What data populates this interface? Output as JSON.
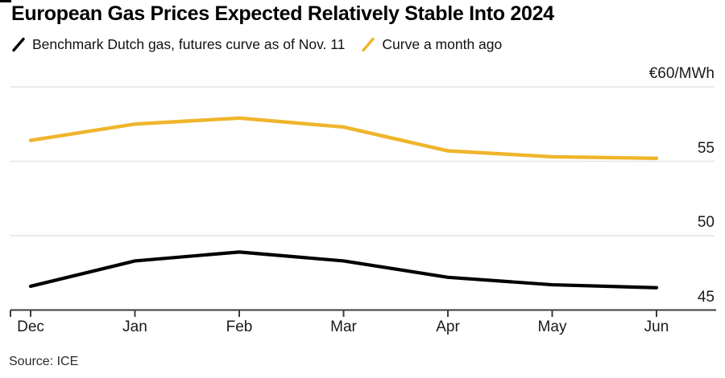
{
  "header": {
    "title": "European Gas Prices Expected Relatively Stable Into 2024",
    "legend": [
      {
        "label": "Benchmark Dutch gas, futures curve as of Nov. 11",
        "color": "#000000"
      },
      {
        "label": "Curve a month ago",
        "color": "#EFB52B"
      }
    ]
  },
  "chart_data": {
    "type": "line",
    "categories": [
      "Dec",
      "Jan",
      "Feb",
      "Mar",
      "Apr",
      "May",
      "Jun"
    ],
    "series": [
      {
        "name": "Benchmark Dutch gas, futures curve as of Nov. 11",
        "color": "#000000",
        "values": [
          46.6,
          48.3,
          48.9,
          48.3,
          47.2,
          46.7,
          46.5
        ]
      },
      {
        "name": "Curve a month ago",
        "color": "#EFB52B",
        "values": [
          56.4,
          57.5,
          57.9,
          57.3,
          55.7,
          55.3,
          55.2
        ]
      }
    ],
    "unit_label": "€60/MWh",
    "unit_label_value": 60,
    "y_grid_values": [
      60,
      55,
      50
    ],
    "y_tick_labels": [
      {
        "text": "55",
        "value": 55
      },
      {
        "text": "50",
        "value": 50
      },
      {
        "text": "45",
        "value": 45
      }
    ],
    "ylim": [
      45,
      60
    ],
    "grid": "horizontal",
    "legend_position": "top",
    "colors": {
      "gridline": "#e4e4e4",
      "axis": "#3c3c3c",
      "label": "#1a1a1a"
    }
  },
  "footer": {
    "source": "Source: ICE"
  }
}
